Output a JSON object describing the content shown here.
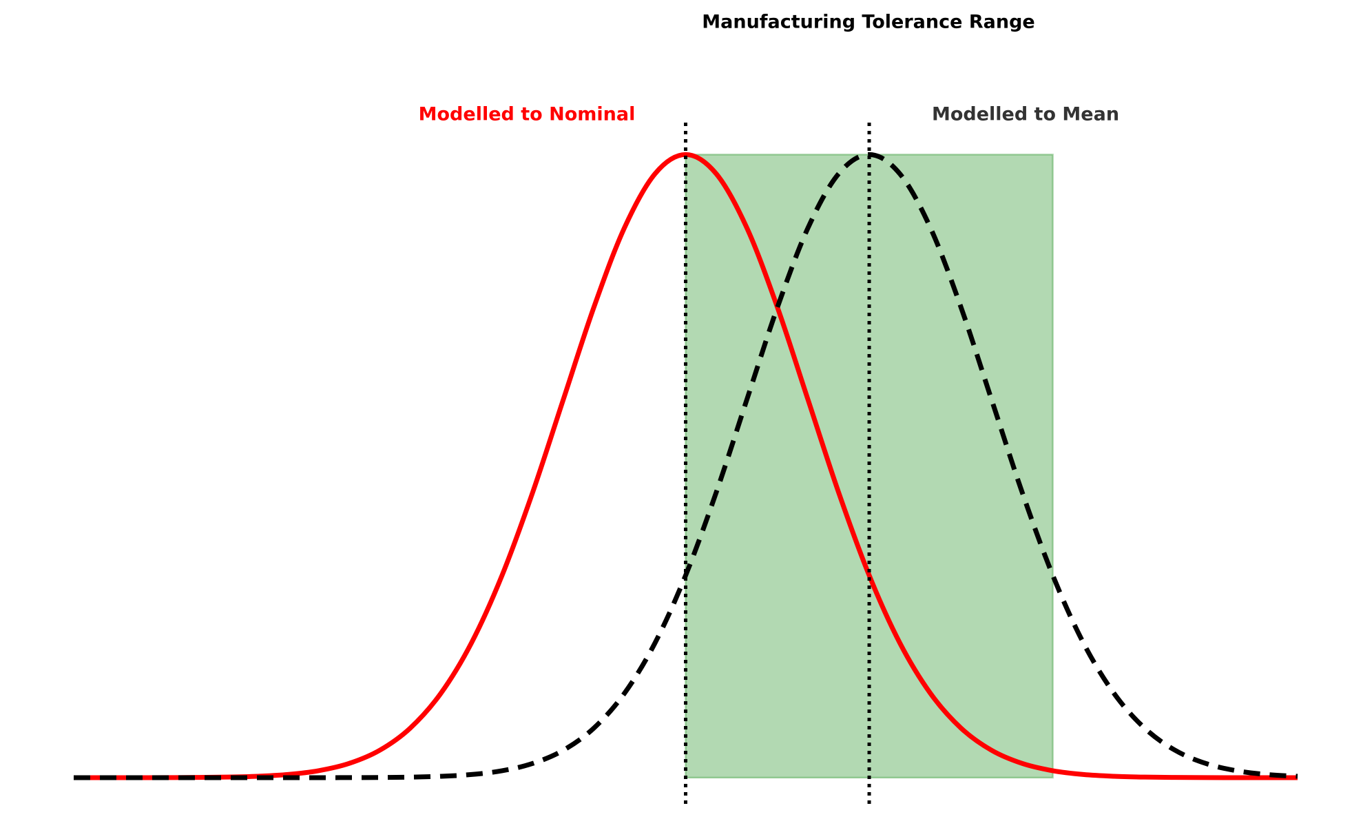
{
  "chart_data": {
    "type": "line",
    "title": "Manufacturing Tolerance Range",
    "x": [
      -10,
      -9.5,
      -9,
      -8.5,
      -8,
      -7.5,
      -7,
      -6.5,
      -6,
      -5.5,
      -5,
      -4.5,
      -4,
      -3.5,
      -3,
      -2.5,
      -2,
      -1.5,
      -1,
      -0.5,
      0,
      0.5,
      1,
      1.5,
      2,
      2.5,
      3,
      3.5,
      4,
      4.5,
      5,
      5.5,
      6,
      6.5,
      7,
      7.5,
      8,
      8.5,
      9,
      9.5,
      10
    ],
    "series": [
      {
        "name": "Modelled to Nominal",
        "color": "#ff0000",
        "dash": "solid",
        "values": [
          0,
          0,
          1e-05,
          2e-05,
          7e-05,
          0.00018,
          0.00044,
          0.00101,
          0.00222,
          0.00455,
          0.00876,
          0.01587,
          0.027,
          0.04314,
          0.06476,
          0.09132,
          0.12099,
          0.15057,
          0.17603,
          0.19333,
          0.19947,
          0.19333,
          0.17603,
          0.15057,
          0.12099,
          0.09132,
          0.06476,
          0.04314,
          0.027,
          0.01587,
          0.00876,
          0.00455,
          0.00222,
          0.00101,
          0.00044,
          0.00018,
          7e-05,
          2e-05,
          1e-05,
          0,
          0
        ]
      },
      {
        "name": "Modelled to Mean",
        "color": "#333333",
        "dash": "dashed",
        "values": [
          0,
          0,
          0,
          0,
          0,
          0,
          0,
          0,
          1e-05,
          2e-05,
          7e-05,
          0.00018,
          0.00044,
          0.00101,
          0.00222,
          0.00455,
          0.00876,
          0.01587,
          0.027,
          0.04314,
          0.06476,
          0.09132,
          0.12099,
          0.15057,
          0.17603,
          0.19333,
          0.19947,
          0.19333,
          0.17603,
          0.15057,
          0.12099,
          0.09132,
          0.06476,
          0.04314,
          0.027,
          0.01587,
          0.00876,
          0.00455,
          0.00222,
          0.00101,
          0.00044
        ]
      }
    ],
    "tolerance_band": {
      "x": [
        0,
        6
      ],
      "y": [
        0,
        0.19947
      ],
      "color": "#008000"
    },
    "reference_lines": [
      0,
      3
    ],
    "xlim": [
      -10,
      10
    ],
    "ylim": [
      0,
      0.2
    ],
    "grid": false
  }
}
